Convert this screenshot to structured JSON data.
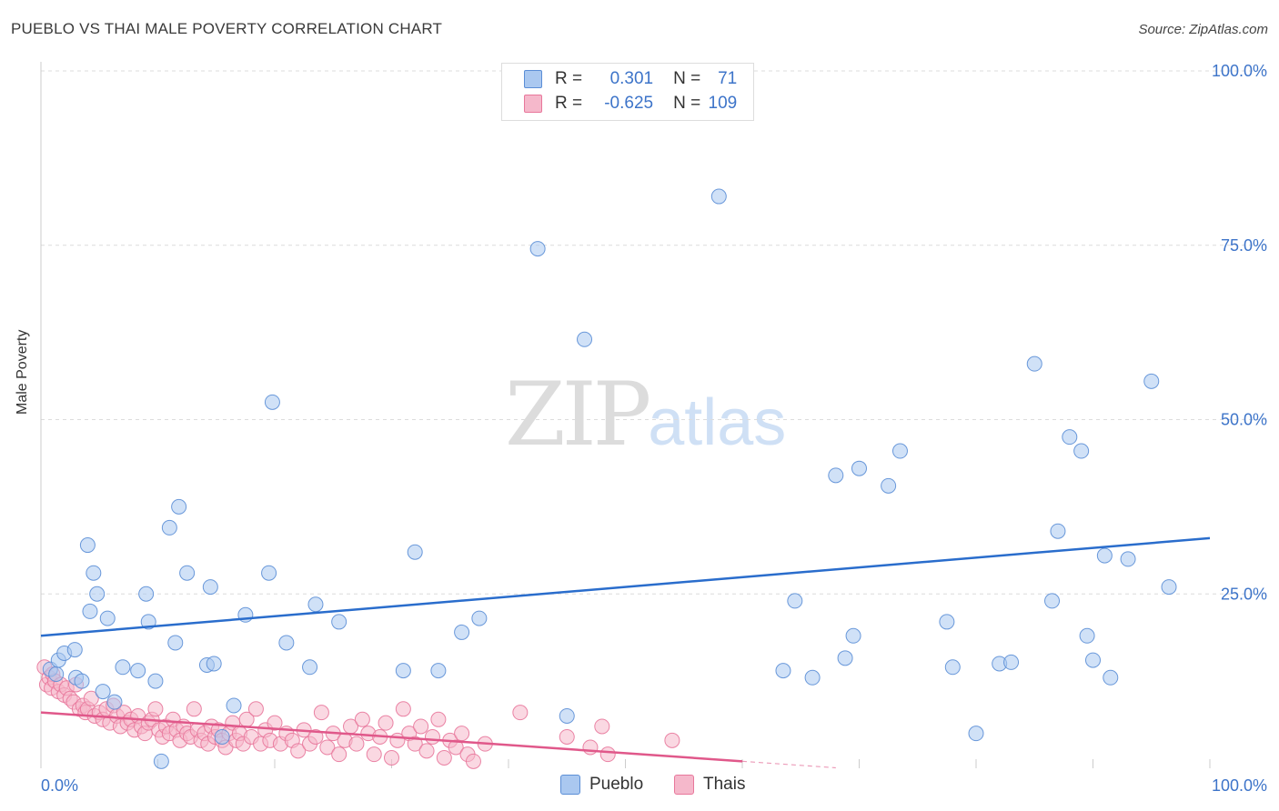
{
  "header": {
    "title": "PUEBLO VS THAI MALE POVERTY CORRELATION CHART",
    "source": "Source: ZipAtlas.com"
  },
  "watermark": {
    "zip": "ZIP",
    "atlas": "atlas"
  },
  "legend": {
    "rows": [
      {
        "r_label": "R =",
        "r_value": "0.301",
        "n_label": "N =",
        "n_value": "71"
      },
      {
        "r_label": "R =",
        "r_value": "-0.625",
        "n_label": "N =",
        "n_value": "109"
      }
    ]
  },
  "bottom_legend": {
    "pueblo": "Pueblo",
    "thais": "Thais"
  },
  "colors": {
    "pueblo_fill": "#aac8f0",
    "pueblo_stroke": "#5b8ed6",
    "pueblo_line": "#2a6dcc",
    "thai_fill": "#f5b8cb",
    "thai_stroke": "#e8779b",
    "thai_line": "#e0588a",
    "tick_text": "#3d74c9",
    "grid": "#dcdcdc"
  },
  "chart_data": {
    "type": "scatter",
    "title": "PUEBLO VS THAI MALE POVERTY CORRELATION CHART",
    "xlabel": "",
    "ylabel": "Male Poverty",
    "xlim": [
      0,
      100
    ],
    "ylim": [
      0,
      100
    ],
    "x_tick_labels": [
      "0.0%",
      "100.0%"
    ],
    "y_tick_labels": [
      "25.0%",
      "50.0%",
      "75.0%",
      "100.0%"
    ],
    "y_tick_values": [
      25,
      50,
      75,
      100
    ],
    "series": [
      {
        "name": "Pueblo",
        "r": 0.301,
        "n": 71,
        "trend": {
          "x": [
            0,
            100
          ],
          "y": [
            19.0,
            33.0
          ]
        },
        "points": [
          [
            0.8,
            14.2
          ],
          [
            1.3,
            13.5
          ],
          [
            1.5,
            15.5
          ],
          [
            2.0,
            16.5
          ],
          [
            2.9,
            17.0
          ],
          [
            3.0,
            13.0
          ],
          [
            3.5,
            12.5
          ],
          [
            4.0,
            32.0
          ],
          [
            4.2,
            22.5
          ],
          [
            4.5,
            28.0
          ],
          [
            4.8,
            25.0
          ],
          [
            5.3,
            11.0
          ],
          [
            5.7,
            21.5
          ],
          [
            6.3,
            9.5
          ],
          [
            7.0,
            14.5
          ],
          [
            8.3,
            14.0
          ],
          [
            9.0,
            25.0
          ],
          [
            9.2,
            21.0
          ],
          [
            9.8,
            12.5
          ],
          [
            10.3,
            1.0
          ],
          [
            11.0,
            34.5
          ],
          [
            11.5,
            18.0
          ],
          [
            11.8,
            37.5
          ],
          [
            12.5,
            28.0
          ],
          [
            14.2,
            14.8
          ],
          [
            14.5,
            26.0
          ],
          [
            14.8,
            15.0
          ],
          [
            15.5,
            4.5
          ],
          [
            16.5,
            9.0
          ],
          [
            17.5,
            22.0
          ],
          [
            19.5,
            28.0
          ],
          [
            19.8,
            52.5
          ],
          [
            21.0,
            18.0
          ],
          [
            23.0,
            14.5
          ],
          [
            23.5,
            23.5
          ],
          [
            25.5,
            21.0
          ],
          [
            31.0,
            14.0
          ],
          [
            32.0,
            31.0
          ],
          [
            34.0,
            14.0
          ],
          [
            36.0,
            19.5
          ],
          [
            37.5,
            21.5
          ],
          [
            42.5,
            74.5
          ],
          [
            45.0,
            7.5
          ],
          [
            46.5,
            61.5
          ],
          [
            58.0,
            82.0
          ],
          [
            63.5,
            14.0
          ],
          [
            64.5,
            24.0
          ],
          [
            66.0,
            13.0
          ],
          [
            68.0,
            42.0
          ],
          [
            68.8,
            15.8
          ],
          [
            69.5,
            19.0
          ],
          [
            70.0,
            43.0
          ],
          [
            72.5,
            40.5
          ],
          [
            73.5,
            45.5
          ],
          [
            77.5,
            21.0
          ],
          [
            78.0,
            14.5
          ],
          [
            80.0,
            5.0
          ],
          [
            82.0,
            15.0
          ],
          [
            83.0,
            15.2
          ],
          [
            85.0,
            58.0
          ],
          [
            86.5,
            24.0
          ],
          [
            87.0,
            34.0
          ],
          [
            88.0,
            47.5
          ],
          [
            89.0,
            45.5
          ],
          [
            89.5,
            19.0
          ],
          [
            90.0,
            15.5
          ],
          [
            91.0,
            30.5
          ],
          [
            91.5,
            13.0
          ],
          [
            93.0,
            30.0
          ],
          [
            95.0,
            55.5
          ],
          [
            96.5,
            26.0
          ]
        ]
      },
      {
        "name": "Thais",
        "r": -0.625,
        "n": 109,
        "trend": {
          "x": [
            0,
            60
          ],
          "y": [
            8.0,
            1.0
          ]
        },
        "points": [
          [
            0.3,
            14.5
          ],
          [
            0.5,
            12.0
          ],
          [
            0.7,
            13.0
          ],
          [
            0.9,
            11.5
          ],
          [
            1.0,
            13.5
          ],
          [
            1.2,
            12.5
          ],
          [
            1.5,
            11.0
          ],
          [
            1.7,
            12.0
          ],
          [
            2.0,
            10.5
          ],
          [
            2.2,
            11.5
          ],
          [
            2.5,
            10.0
          ],
          [
            2.8,
            9.5
          ],
          [
            3.0,
            12.0
          ],
          [
            3.3,
            8.5
          ],
          [
            3.6,
            9.0
          ],
          [
            3.8,
            8.0
          ],
          [
            4.0,
            8.5
          ],
          [
            4.3,
            10.0
          ],
          [
            4.6,
            7.5
          ],
          [
            5.0,
            8.0
          ],
          [
            5.3,
            7.0
          ],
          [
            5.6,
            8.5
          ],
          [
            5.9,
            6.5
          ],
          [
            6.2,
            9.0
          ],
          [
            6.5,
            7.5
          ],
          [
            6.8,
            6.0
          ],
          [
            7.1,
            8.0
          ],
          [
            7.4,
            6.5
          ],
          [
            7.7,
            7.0
          ],
          [
            8.0,
            5.5
          ],
          [
            8.3,
            7.5
          ],
          [
            8.6,
            6.0
          ],
          [
            8.9,
            5.0
          ],
          [
            9.2,
            6.5
          ],
          [
            9.5,
            7.0
          ],
          [
            9.8,
            8.5
          ],
          [
            10.1,
            5.5
          ],
          [
            10.4,
            4.5
          ],
          [
            10.7,
            6.0
          ],
          [
            11.0,
            5.0
          ],
          [
            11.3,
            7.0
          ],
          [
            11.6,
            5.5
          ],
          [
            11.9,
            4.0
          ],
          [
            12.2,
            6.0
          ],
          [
            12.5,
            5.0
          ],
          [
            12.8,
            4.5
          ],
          [
            13.1,
            8.5
          ],
          [
            13.4,
            5.5
          ],
          [
            13.7,
            4.0
          ],
          [
            14.0,
            5.0
          ],
          [
            14.3,
            3.5
          ],
          [
            14.6,
            6.0
          ],
          [
            14.9,
            4.5
          ],
          [
            15.2,
            5.5
          ],
          [
            15.5,
            4.0
          ],
          [
            15.8,
            3.0
          ],
          [
            16.1,
            5.0
          ],
          [
            16.4,
            6.5
          ],
          [
            16.7,
            4.0
          ],
          [
            17.0,
            5.0
          ],
          [
            17.3,
            3.5
          ],
          [
            17.6,
            7.0
          ],
          [
            18.0,
            4.5
          ],
          [
            18.4,
            8.5
          ],
          [
            18.8,
            3.5
          ],
          [
            19.2,
            5.5
          ],
          [
            19.6,
            4.0
          ],
          [
            20.0,
            6.5
          ],
          [
            20.5,
            3.5
          ],
          [
            21.0,
            5.0
          ],
          [
            21.5,
            4.0
          ],
          [
            22.0,
            2.5
          ],
          [
            22.5,
            5.5
          ],
          [
            23.0,
            3.5
          ],
          [
            23.5,
            4.5
          ],
          [
            24.0,
            8.0
          ],
          [
            24.5,
            3.0
          ],
          [
            25.0,
            5.0
          ],
          [
            25.5,
            2.0
          ],
          [
            26.0,
            4.0
          ],
          [
            26.5,
            6.0
          ],
          [
            27.0,
            3.5
          ],
          [
            27.5,
            7.0
          ],
          [
            28.0,
            5.0
          ],
          [
            28.5,
            2.0
          ],
          [
            29.0,
            4.5
          ],
          [
            29.5,
            6.5
          ],
          [
            30.0,
            1.5
          ],
          [
            30.5,
            4.0
          ],
          [
            31.0,
            8.5
          ],
          [
            31.5,
            5.0
          ],
          [
            32.0,
            3.5
          ],
          [
            32.5,
            6.0
          ],
          [
            33.0,
            2.5
          ],
          [
            33.5,
            4.5
          ],
          [
            34.0,
            7.0
          ],
          [
            34.5,
            1.5
          ],
          [
            35.0,
            4.0
          ],
          [
            35.5,
            3.0
          ],
          [
            36.0,
            5.0
          ],
          [
            36.5,
            2.0
          ],
          [
            37.0,
            1.0
          ],
          [
            38.0,
            3.5
          ],
          [
            41.0,
            8.0
          ],
          [
            45.0,
            4.5
          ],
          [
            47.0,
            3.0
          ],
          [
            48.0,
            6.0
          ],
          [
            48.5,
            2.0
          ],
          [
            54.0,
            4.0
          ]
        ]
      }
    ]
  }
}
